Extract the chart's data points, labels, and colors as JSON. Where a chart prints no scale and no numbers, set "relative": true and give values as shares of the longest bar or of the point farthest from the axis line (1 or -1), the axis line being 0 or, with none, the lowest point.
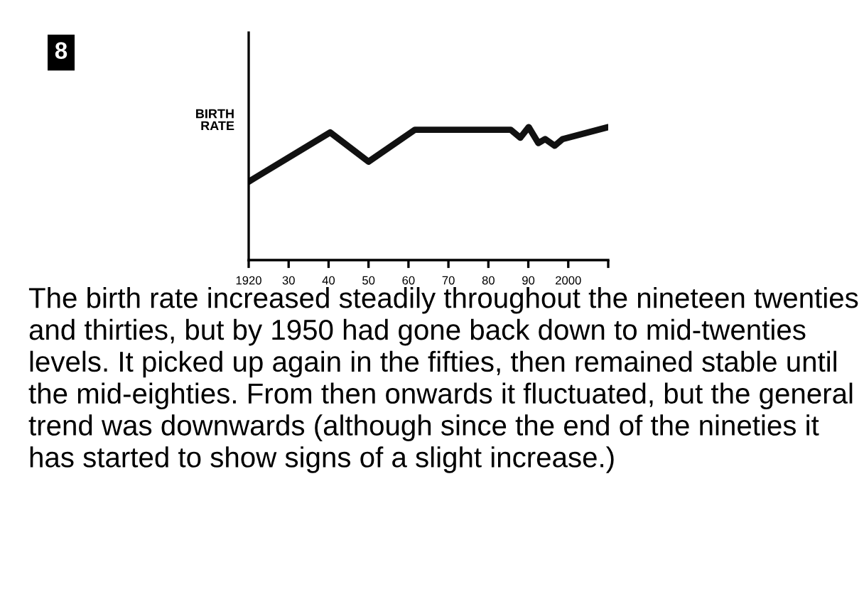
{
  "chart_data": {
    "type": "line",
    "relative": true,
    "ylabel": "BIRTH\nRATE",
    "x": [
      1920,
      1940.4,
      1950,
      1961.6,
      1985.6,
      1988,
      1990.1,
      1992.5,
      1994.2,
      1996.6,
      1998.6,
      2010
    ],
    "values": [
      0.59,
      0.96,
      0.74,
      0.98,
      0.98,
      0.92,
      1.0,
      0.88,
      0.91,
      0.86,
      0.91,
      1.0
    ],
    "color": "#111111",
    "xlim": [
      1920,
      2010
    ],
    "xticks": [
      1920,
      {
        "value": 1930,
        "label": "30"
      },
      {
        "value": 1940,
        "label": "40"
      },
      {
        "value": 1950,
        "label": "50"
      },
      {
        "value": 1960,
        "label": "60"
      },
      {
        "value": 1970,
        "label": "70"
      },
      {
        "value": 1980,
        "label": "80"
      },
      {
        "value": 1990,
        "label": "90"
      },
      2000,
      {
        "value": 2010,
        "label": null
      }
    ],
    "annotations": [
      "8",
      "The birth rate increased steadily throughout the nineteen twenties and thirties, but by 1950 had gone back down to mid-twenties levels. It picked up again in the fifties, then remained stable until the mid-eighties. From then onwards it fluctuated, but the general trend was downwards (although since the end of the nineties it has started to show signs of a slight increase.)"
    ]
  }
}
